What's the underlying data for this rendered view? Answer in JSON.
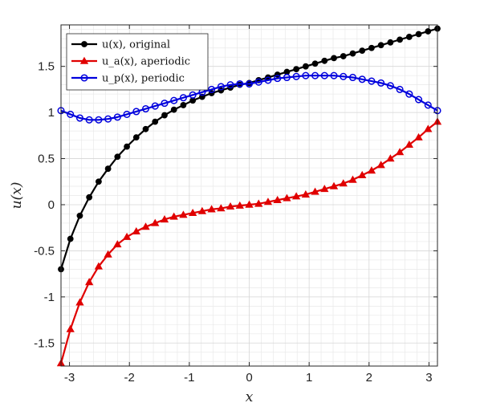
{
  "chart_data": {
    "type": "line",
    "xlabel": "x",
    "ylabel": "u(x)",
    "xlim": [
      -3.14159,
      3.14159
    ],
    "ylim": [
      -1.75,
      1.95
    ],
    "xticks": [
      -3,
      -2,
      -1,
      0,
      1,
      2,
      3
    ],
    "yticks": [
      -1.5,
      -1,
      -0.5,
      0,
      0.5,
      1,
      1.5
    ],
    "xtick_labels": [
      "-3",
      "-2",
      "-1",
      "0",
      "1",
      "2",
      "3"
    ],
    "ytick_labels": [
      "-1.5",
      "-1",
      "-0.5",
      "0",
      "0.5",
      "1",
      "1.5"
    ],
    "grid": "minor",
    "legend_position": "top-left",
    "series": [
      {
        "name": "u(x), original",
        "color": "#000000",
        "marker": "circle-filled",
        "x": [
          -3.1416,
          -2.9845,
          -2.8274,
          -2.6704,
          -2.5133,
          -2.3562,
          -2.1991,
          -2.042,
          -1.885,
          -1.7279,
          -1.5708,
          -1.4137,
          -1.2566,
          -1.0996,
          -0.9425,
          -0.7854,
          -0.6283,
          -0.4712,
          -0.3142,
          -0.1571,
          0.0,
          0.1571,
          0.3142,
          0.4712,
          0.6283,
          0.7854,
          0.9425,
          1.0996,
          1.2566,
          1.4137,
          1.5708,
          1.7279,
          1.885,
          2.042,
          2.1991,
          2.3562,
          2.5133,
          2.6704,
          2.8274,
          2.9845,
          3.1416
        ],
        "y": [
          -0.7,
          -0.37,
          -0.12,
          0.08,
          0.25,
          0.39,
          0.52,
          0.63,
          0.73,
          0.82,
          0.9,
          0.97,
          1.03,
          1.08,
          1.13,
          1.17,
          1.21,
          1.24,
          1.27,
          1.3,
          1.32,
          1.35,
          1.38,
          1.41,
          1.44,
          1.47,
          1.5,
          1.53,
          1.56,
          1.59,
          1.61,
          1.64,
          1.67,
          1.7,
          1.73,
          1.76,
          1.79,
          1.82,
          1.85,
          1.88,
          1.91
        ]
      },
      {
        "name": "u_a(x), aperiodic",
        "color": "#e00000",
        "marker": "triangle-filled",
        "x": [
          -3.1416,
          -2.9845,
          -2.8274,
          -2.6704,
          -2.5133,
          -2.3562,
          -2.1991,
          -2.042,
          -1.885,
          -1.7279,
          -1.5708,
          -1.4137,
          -1.2566,
          -1.0996,
          -0.9425,
          -0.7854,
          -0.6283,
          -0.4712,
          -0.3142,
          -0.1571,
          0.0,
          0.1571,
          0.3142,
          0.4712,
          0.6283,
          0.7854,
          0.9425,
          1.0996,
          1.2566,
          1.4137,
          1.5708,
          1.7279,
          1.885,
          2.042,
          2.1991,
          2.3562,
          2.5133,
          2.6704,
          2.8274,
          2.9845,
          3.1416
        ],
        "y": [
          -1.72,
          -1.35,
          -1.06,
          -0.84,
          -0.67,
          -0.54,
          -0.43,
          -0.35,
          -0.29,
          -0.24,
          -0.2,
          -0.16,
          -0.13,
          -0.11,
          -0.09,
          -0.07,
          -0.05,
          -0.04,
          -0.02,
          -0.01,
          0.0,
          0.01,
          0.03,
          0.05,
          0.07,
          0.09,
          0.11,
          0.14,
          0.17,
          0.2,
          0.23,
          0.27,
          0.32,
          0.37,
          0.43,
          0.5,
          0.57,
          0.65,
          0.73,
          0.82,
          0.9
        ]
      },
      {
        "name": "u_p(x), periodic",
        "color": "#0000dd",
        "marker": "circle-open",
        "x": [
          -3.1416,
          -2.9845,
          -2.8274,
          -2.6704,
          -2.5133,
          -2.3562,
          -2.1991,
          -2.042,
          -1.885,
          -1.7279,
          -1.5708,
          -1.4137,
          -1.2566,
          -1.0996,
          -0.9425,
          -0.7854,
          -0.6283,
          -0.4712,
          -0.3142,
          -0.1571,
          0.0,
          0.1571,
          0.3142,
          0.4712,
          0.6283,
          0.7854,
          0.9425,
          1.0996,
          1.2566,
          1.4137,
          1.5708,
          1.7279,
          1.885,
          2.042,
          2.1991,
          2.3562,
          2.5133,
          2.6704,
          2.8274,
          2.9845,
          3.1416
        ],
        "y": [
          1.02,
          0.98,
          0.94,
          0.92,
          0.92,
          0.93,
          0.95,
          0.98,
          1.01,
          1.04,
          1.07,
          1.1,
          1.13,
          1.16,
          1.19,
          1.22,
          1.25,
          1.28,
          1.3,
          1.31,
          1.31,
          1.33,
          1.35,
          1.37,
          1.38,
          1.39,
          1.4,
          1.4,
          1.4,
          1.4,
          1.39,
          1.38,
          1.36,
          1.34,
          1.32,
          1.29,
          1.25,
          1.2,
          1.14,
          1.08,
          1.02
        ]
      }
    ]
  }
}
